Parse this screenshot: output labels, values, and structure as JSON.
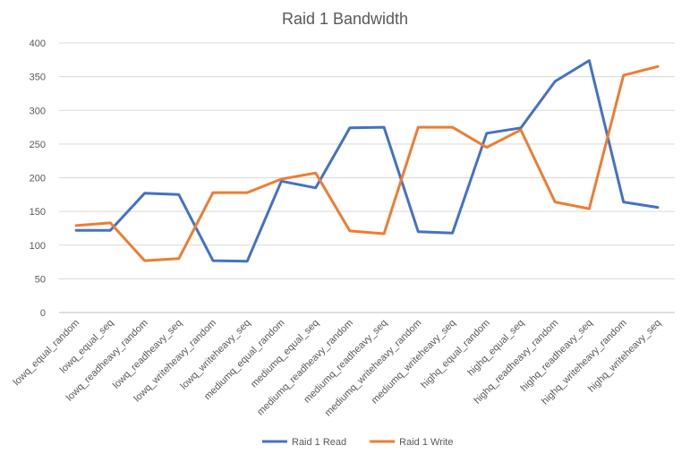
{
  "chart_data": {
    "type": "line",
    "title": "Raid 1 Bandwidth",
    "xlabel": "",
    "ylabel": "",
    "ylim": [
      0,
      400
    ],
    "yticks": [
      0,
      50,
      100,
      150,
      200,
      250,
      300,
      350,
      400
    ],
    "grid": true,
    "legend_position": "bottom",
    "categories": [
      "lowq_equal_random",
      "lowq_equal_seq",
      "lowq_readheavy_random",
      "lowq_readheavy_seq",
      "lowq_writeheavy_random",
      "lowq_writeheavy_seq",
      "mediumq_equal_random",
      "mediumq_equal_seq",
      "mediumq_readheavy_random",
      "mediumq_readheavy_seq",
      "mediumq_writeheavy_random",
      "mediumq_writeheavy_seq",
      "highq_equal_random",
      "highq_equal_seq",
      "highq_readheavy_random",
      "highq_readheavy_seq",
      "highq_writeheavy_random",
      "highq_writeheavy_seq"
    ],
    "series": [
      {
        "name": "Raid 1 Read",
        "color": "#4472C4",
        "values": [
          122,
          122,
          177,
          175,
          77,
          76,
          195,
          185,
          274,
          275,
          120,
          118,
          266,
          274,
          343,
          374,
          164,
          156
        ]
      },
      {
        "name": "Raid 1 Write",
        "color": "#ED7D31",
        "values": [
          129,
          133,
          77,
          80,
          178,
          178,
          198,
          207,
          121,
          117,
          275,
          275,
          245,
          271,
          164,
          154,
          352,
          365
        ]
      }
    ]
  }
}
